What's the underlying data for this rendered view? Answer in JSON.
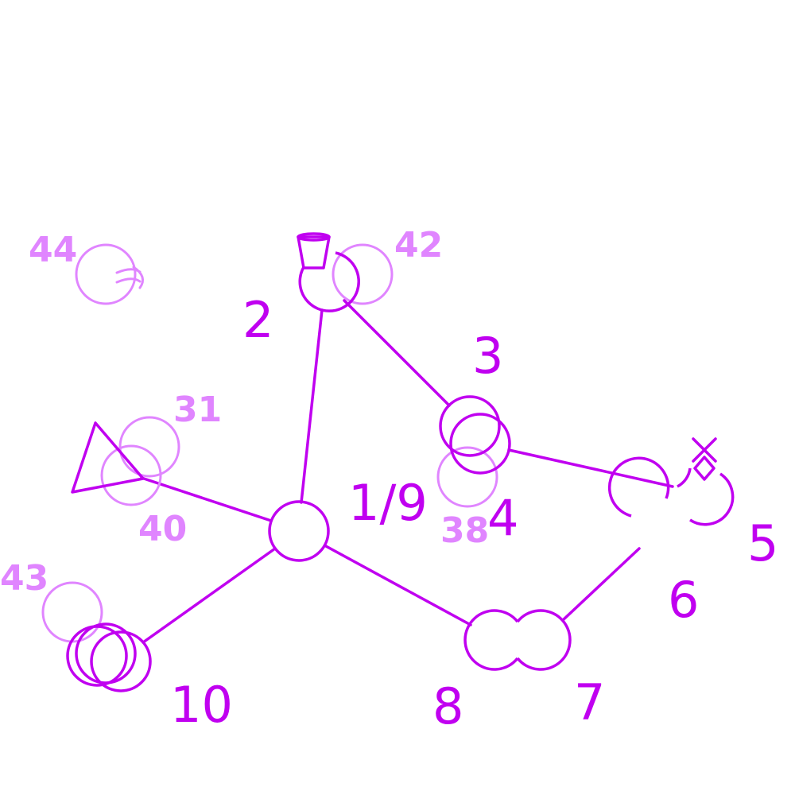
{
  "colors": {
    "primary": "#c000f0",
    "secondary": "#e085ff",
    "background": "#ffffff"
  },
  "labels": {
    "n1_9": "1/9",
    "n2": "2",
    "n3": "3",
    "n4": "4",
    "n5": "5",
    "n6": "6",
    "n7": "7",
    "n8": "8",
    "n10": "10"
  },
  "ghost_labels": {
    "g31": "31",
    "g38": "38",
    "g40": "40",
    "g42": "42",
    "g43": "43",
    "g44": "44"
  },
  "icons": {
    "n2": "cup-icon",
    "n5": "cross-diamond-icon",
    "g44": "hook-icon",
    "triangle": "triangle-icon"
  }
}
